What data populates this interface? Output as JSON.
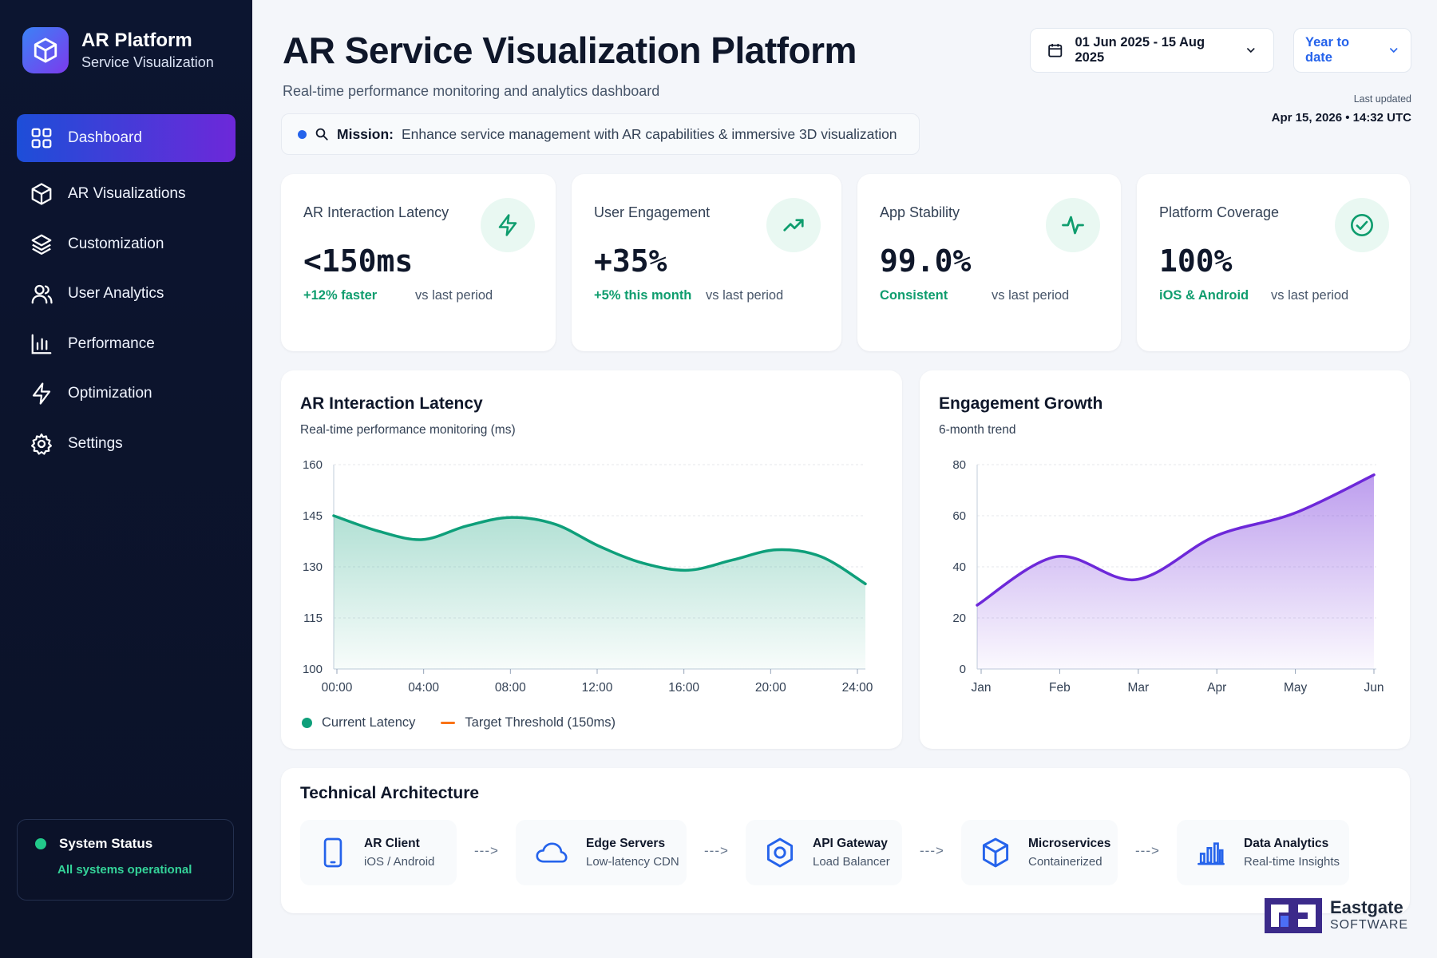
{
  "brand": {
    "title": "AR Platform",
    "subtitle": "Service Visualization"
  },
  "nav": [
    {
      "label": "Dashboard",
      "icon": "grid-icon",
      "active": true
    },
    {
      "label": "AR Visualizations",
      "icon": "cube-icon"
    },
    {
      "label": "Customization",
      "icon": "layers-icon"
    },
    {
      "label": "User Analytics",
      "icon": "users-icon"
    },
    {
      "label": "Performance",
      "icon": "bar-chart-icon"
    },
    {
      "label": "Optimization",
      "icon": "bolt-icon"
    },
    {
      "label": "Settings",
      "icon": "gear-icon"
    }
  ],
  "system_status": {
    "title": "System Status",
    "text": "All systems operational",
    "color": "#22c98a"
  },
  "header": {
    "title": "AR Service Visualization Platform",
    "subtitle": "Real-time performance monitoring and analytics dashboard",
    "mission_label": "Mission:",
    "mission_text": "Enhance service management with AR capabilities & immersive 3D visualization",
    "date_range": "01 Jun 2025 - 15 Aug 2025",
    "period": "Year to date",
    "last_updated_label": "Last updated",
    "last_updated_value": "Apr 15, 2026  •  14:32 UTC"
  },
  "kpis": [
    {
      "label": "AR Interaction Latency",
      "value": "<150ms",
      "delta": "+12% faster",
      "note": "vs last period",
      "icon": "bolt-icon"
    },
    {
      "label": "User Engagement",
      "value": "+35%",
      "delta": "+5% this month",
      "note": "vs last period",
      "icon": "trend-up-icon"
    },
    {
      "label": "App Stability",
      "value": "99.0%",
      "delta": "Consistent",
      "note": "vs last period",
      "icon": "pulse-icon"
    },
    {
      "label": "Platform Coverage",
      "value": "100%",
      "delta": "iOS & Android",
      "note": "vs last period",
      "icon": "check-circle-icon"
    }
  ],
  "charts": {
    "latency": {
      "title": "AR Interaction Latency",
      "subtitle": "Real-time performance monitoring (ms)"
    },
    "engagement": {
      "title": "Engagement Growth",
      "subtitle": "6-month trend"
    }
  },
  "chart_data": [
    {
      "type": "area",
      "title": "AR Interaction Latency",
      "subtitle": "Real-time performance monitoring (ms)",
      "x": [
        "00:00",
        "02:00",
        "04:00",
        "06:00",
        "08:00",
        "10:00",
        "12:00",
        "14:00",
        "16:00",
        "18:00",
        "20:00",
        "22:00",
        "24:00"
      ],
      "tick_labels": [
        "00:00",
        "04:00",
        "08:00",
        "12:00",
        "16:00",
        "20:00",
        "24:00"
      ],
      "series": [
        {
          "name": "Current Latency",
          "values": [
            145,
            140.5,
            138,
            142,
            144.5,
            142.5,
            136,
            131,
            129,
            132,
            135,
            133,
            125
          ],
          "color": "#0e9f7a"
        }
      ],
      "threshold": {
        "name": "Target Threshold (150ms)",
        "value": 150,
        "color": "#f97316"
      },
      "ylim": [
        100,
        160
      ],
      "yticks": [
        100,
        115,
        130,
        145,
        160
      ],
      "legend": "bottom-left"
    },
    {
      "type": "area",
      "title": "Engagement Growth",
      "subtitle": "6-month trend",
      "categories": [
        "Jan",
        "Feb",
        "Mar",
        "Apr",
        "May",
        "Jun"
      ],
      "series": [
        {
          "values": [
            25,
            44,
            35,
            52,
            61,
            76
          ],
          "color": "#6d28d9"
        }
      ],
      "ylim": [
        0,
        80
      ],
      "yticks": [
        0,
        20,
        40,
        60,
        80
      ]
    }
  ],
  "architecture": {
    "title": "Technical Architecture",
    "arrow": "--->",
    "nodes": [
      {
        "name": "AR Client",
        "desc": "iOS / Android",
        "icon": "phone-icon"
      },
      {
        "name": "Edge Servers",
        "desc": "Low-latency CDN",
        "icon": "cloud-icon"
      },
      {
        "name": "API Gateway",
        "desc": "Load Balancer",
        "icon": "hexagon-icon"
      },
      {
        "name": "Microservices",
        "desc": "Containerized",
        "icon": "cube-icon"
      },
      {
        "name": "Data Analytics",
        "desc": "Real-time Insights",
        "icon": "bar-chart-icon"
      }
    ]
  },
  "footer_brand": {
    "name": "Eastgate",
    "sub": "SOFTWARE"
  }
}
